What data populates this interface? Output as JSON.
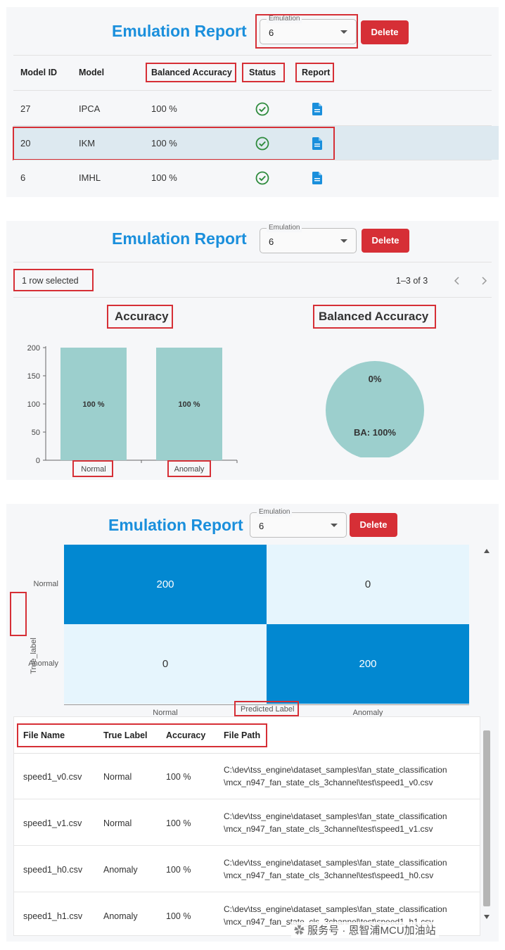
{
  "header": {
    "title": "Emulation Report",
    "emulation_legend": "Emulation",
    "emulation_value": "6",
    "delete_label": "Delete"
  },
  "models_table": {
    "columns": [
      "Model ID",
      "Model",
      "Balanced Accuracy",
      "Status",
      "Report"
    ],
    "rows": [
      {
        "id": "27",
        "model": "IPCA",
        "balanced_accuracy": "100 %",
        "status_icon": "check-circle-icon",
        "report_icon": "document-icon"
      },
      {
        "id": "20",
        "model": "IKM",
        "balanced_accuracy": "100 %",
        "status_icon": "check-circle-icon",
        "report_icon": "document-icon"
      },
      {
        "id": "6",
        "model": "IMHL",
        "balanced_accuracy": "100 %",
        "status_icon": "check-circle-icon",
        "report_icon": "document-icon"
      }
    ],
    "selected_row_index": 1
  },
  "selection_bar": {
    "selected_text": "1 row selected",
    "pagination": "1–3 of 3",
    "prev_icon": "chevron-left-icon",
    "next_icon": "chevron-right-icon"
  },
  "accuracy_section": {
    "title": "Accuracy"
  },
  "balanced_accuracy_section": {
    "title": "Balanced Accuracy"
  },
  "chart_data": [
    {
      "type": "bar",
      "categories": [
        "Normal",
        "Anomaly"
      ],
      "values": [
        200,
        200
      ],
      "data_labels": [
        "100 %",
        "100 %"
      ],
      "ylim": [
        0,
        200
      ],
      "yticks": [
        0,
        50,
        100,
        150,
        200
      ],
      "color": "#9ccfcd"
    },
    {
      "type": "pie",
      "slices": [
        {
          "value": 100
        }
      ],
      "labels": [
        "0%",
        "BA: 100%"
      ],
      "color": "#9ccfcd"
    },
    {
      "type": "heatmap",
      "x_categories": [
        "Normal",
        "Anomaly"
      ],
      "y_categories": [
        "Normal",
        "Anomaly"
      ],
      "xlabel": "Predicted Label",
      "ylabel": "True_label",
      "values": [
        [
          200,
          0
        ],
        [
          0,
          200
        ]
      ],
      "high_color": "#0288d1",
      "low_color": "#e6f5fd"
    }
  ],
  "files_table": {
    "columns": [
      "File Name",
      "True Label",
      "Accuracy",
      "File Path"
    ],
    "rows": [
      {
        "file": "speed1_v0.csv",
        "label": "Normal",
        "accuracy": "100 %",
        "path1": "C:\\dev\\tss_engine\\dataset_samples\\fan_state_classification",
        "path2": "\\mcx_n947_fan_state_cls_3channel\\test\\speed1_v0.csv"
      },
      {
        "file": "speed1_v1.csv",
        "label": "Normal",
        "accuracy": "100 %",
        "path1": "C:\\dev\\tss_engine\\dataset_samples\\fan_state_classification",
        "path2": "\\mcx_n947_fan_state_cls_3channel\\test\\speed1_v1.csv"
      },
      {
        "file": "speed1_h0.csv",
        "label": "Anomaly",
        "accuracy": "100 %",
        "path1": "C:\\dev\\tss_engine\\dataset_samples\\fan_state_classification",
        "path2": "\\mcx_n947_fan_state_cls_3channel\\test\\speed1_h0.csv"
      },
      {
        "file": "speed1_h1.csv",
        "label": "Anomaly",
        "accuracy": "100 %",
        "path1": "C:\\dev\\tss_engine\\dataset_samples\\fan_state_classification",
        "path2": "\\mcx_n947_fan_state_cls_3channel\\test\\speed1_h1.csv"
      }
    ]
  },
  "watermark": {
    "text": "服务号 · 恩智浦MCU加油站"
  }
}
